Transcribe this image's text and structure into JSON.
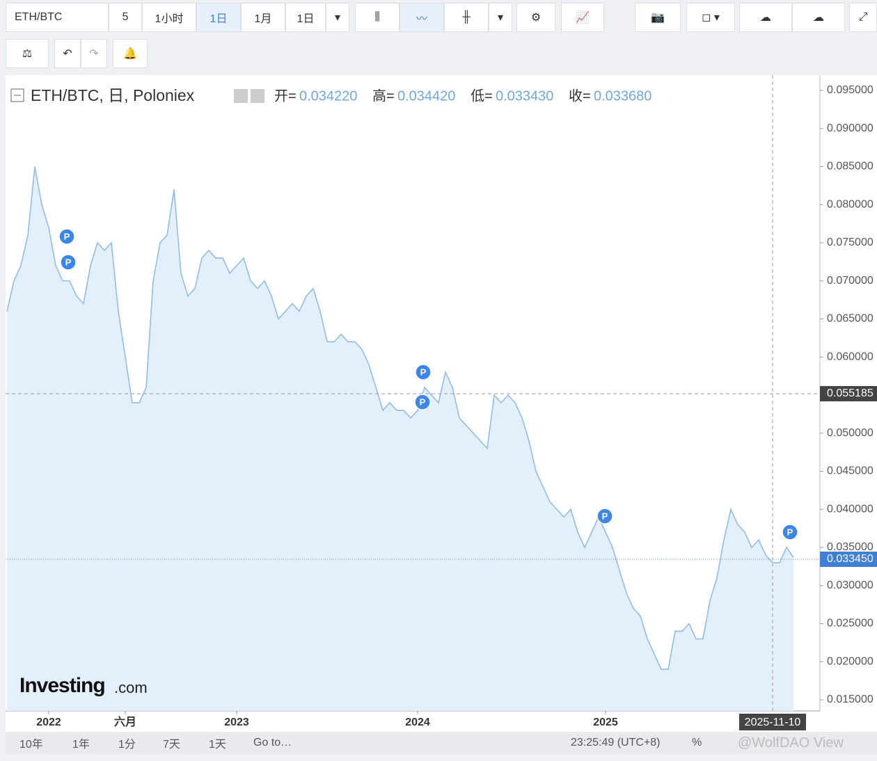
{
  "toolbar": {
    "symbol": "ETH/BTC",
    "buttons": [
      "5",
      "1小时",
      "1日",
      "1月",
      "1日"
    ],
    "active": 2
  },
  "bottom_bar": {
    "ranges": [
      "10年",
      "1年",
      "1分",
      "7天",
      "1天",
      "Go to…"
    ],
    "time": "23:25:49 (UTC+8)",
    "percent": "%",
    "watermark": "@WolfDAO View"
  },
  "legend": {
    "title": "ETH/BTC, 日, Poloniex",
    "ohlc": [
      {
        "label": "开=",
        "value": "0.034220"
      },
      {
        "label": "高=",
        "value": "0.034420"
      },
      {
        "label": "低=",
        "value": "0.033430"
      },
      {
        "label": "收=",
        "value": "0.033680"
      }
    ]
  },
  "logo": {
    "brand": "Investing",
    "suffix": ".com"
  },
  "marker_label": "P",
  "chart_data": {
    "type": "area",
    "color": "#8fbde6",
    "fill": "#e3f0fb",
    "categories": [
      null,
      null,
      null,
      null,
      null,
      null,
      "2022",
      null,
      null,
      null,
      null,
      null,
      null,
      null,
      null,
      null,
      null,
      "六月",
      null,
      null,
      null,
      null,
      null,
      null,
      null,
      null,
      null,
      null,
      null,
      null,
      null,
      null,
      null,
      "2023",
      null,
      null,
      null,
      null,
      null,
      null,
      null,
      null,
      null,
      null,
      null,
      null,
      null,
      null,
      null,
      null,
      null,
      null,
      null,
      null,
      null,
      null,
      null,
      null,
      null,
      "2024",
      null,
      null,
      null,
      null,
      null,
      null,
      null,
      null,
      null,
      null,
      null,
      null,
      null,
      null,
      null,
      null,
      null,
      null,
      null,
      null,
      null,
      null,
      null,
      null,
      null,
      null,
      "2025",
      null,
      null,
      null,
      null,
      null,
      null,
      null,
      null,
      null,
      null,
      null,
      null,
      null,
      null,
      null,
      null,
      null,
      null,
      null,
      null,
      null,
      null,
      null,
      null,
      null,
      null,
      null
    ],
    "values": [
      0.066,
      0.07,
      0.072,
      0.076,
      0.085,
      0.08,
      0.077,
      0.072,
      0.07,
      0.07,
      0.068,
      0.067,
      0.072,
      0.075,
      0.074,
      0.075,
      0.066,
      0.06,
      0.054,
      0.054,
      0.056,
      0.07,
      0.075,
      0.076,
      0.082,
      0.071,
      0.068,
      0.069,
      0.073,
      0.074,
      0.073,
      0.073,
      0.071,
      0.072,
      0.073,
      0.07,
      0.069,
      0.07,
      0.068,
      0.065,
      0.066,
      0.067,
      0.066,
      0.068,
      0.069,
      0.066,
      0.062,
      0.062,
      0.063,
      0.062,
      0.062,
      0.061,
      0.059,
      0.056,
      0.053,
      0.054,
      0.053,
      0.053,
      0.052,
      0.053,
      0.056,
      0.055,
      0.054,
      0.058,
      0.056,
      0.052,
      0.051,
      0.05,
      0.049,
      0.048,
      0.055,
      0.054,
      0.055,
      0.054,
      0.052,
      0.049,
      0.045,
      0.043,
      0.041,
      0.04,
      0.039,
      0.04,
      0.037,
      0.035,
      0.037,
      0.039,
      0.037,
      0.035,
      0.032,
      0.029,
      0.027,
      0.026,
      0.023,
      0.021,
      0.019,
      0.019,
      0.024,
      0.024,
      0.025,
      0.023,
      0.023,
      0.028,
      0.031,
      0.036,
      0.04,
      0.038,
      0.037,
      0.035,
      0.036,
      0.034,
      0.033,
      0.033,
      0.035,
      0.0337
    ],
    "ylim": [
      0.01354,
      0.09701
    ],
    "yticks": [
      {
        "value": 0.015,
        "label": "0.015000"
      },
      {
        "value": 0.02,
        "label": "0.020000"
      },
      {
        "value": 0.025,
        "label": "0.025000"
      },
      {
        "value": 0.03,
        "label": "0.030000"
      },
      {
        "value": 0.035,
        "label": "0.035000"
      },
      {
        "value": 0.04,
        "label": "0.040000"
      },
      {
        "value": 0.045,
        "label": "0.045000"
      },
      {
        "value": 0.05,
        "label": "0.050000"
      },
      {
        "value": 0.055,
        "label": "0.055000"
      },
      {
        "value": 0.06,
        "label": "0.060000"
      },
      {
        "value": 0.065,
        "label": "0.065000"
      },
      {
        "value": 0.07,
        "label": "0.070000"
      },
      {
        "value": 0.075,
        "label": "0.075000"
      },
      {
        "value": 0.08,
        "label": "0.080000"
      },
      {
        "value": 0.085,
        "label": "0.085000"
      },
      {
        "value": 0.09,
        "label": "0.090000"
      },
      {
        "value": 0.095,
        "label": "0.095000"
      }
    ],
    "last_price": {
      "value": 0.03345,
      "label": "0.033450"
    },
    "crosshair": {
      "value": 0.055185,
      "label": "0.055185",
      "date": "2025-11-10"
    }
  }
}
